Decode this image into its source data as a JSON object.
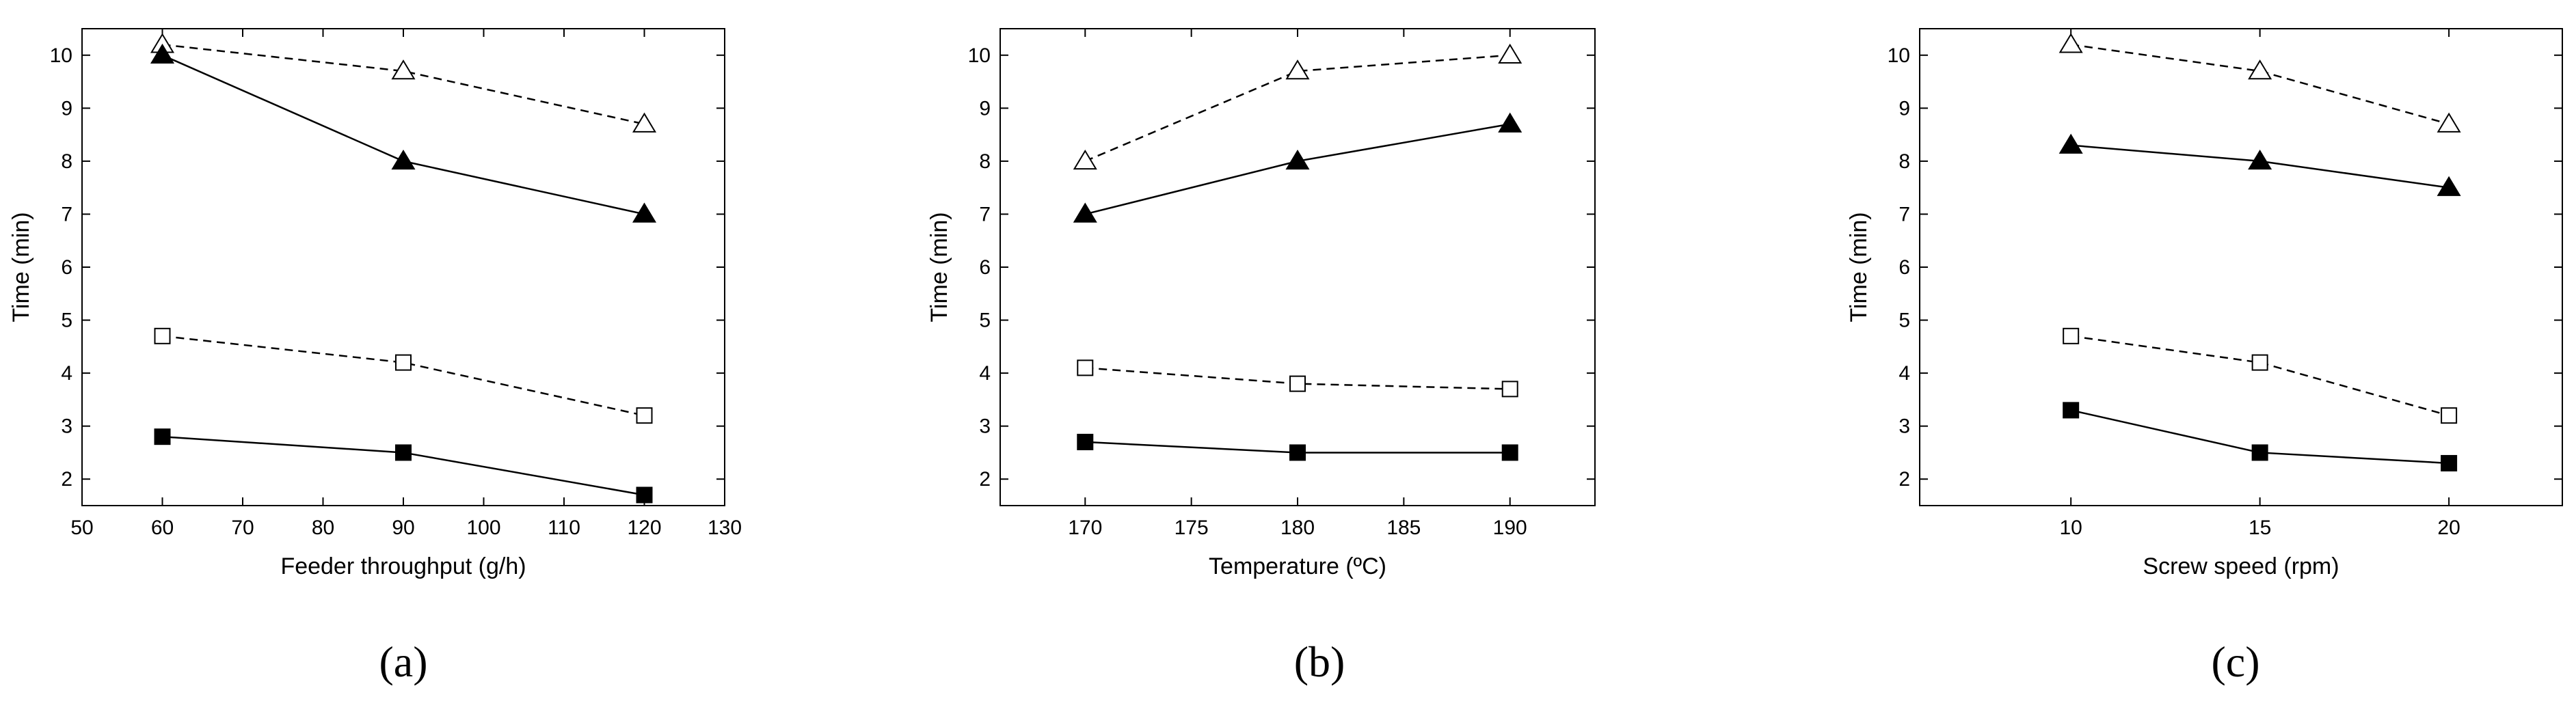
{
  "chart_data": [
    {
      "type": "line",
      "panel_label": "(a)",
      "xlabel": "Feeder throughput (g/h)",
      "ylabel": "Time (min)",
      "xlim": [
        50,
        130
      ],
      "ylim": [
        1.5,
        10.5
      ],
      "xticks": [
        50,
        60,
        70,
        80,
        90,
        100,
        110,
        120,
        130
      ],
      "yticks": [
        2,
        3,
        4,
        5,
        6,
        7,
        8,
        9,
        10
      ],
      "x": [
        60,
        90,
        120
      ],
      "series": [
        {
          "name": "open-triangle",
          "marker": "triangle-open",
          "line": "dashed",
          "values": [
            10.2,
            9.7,
            8.7
          ]
        },
        {
          "name": "filled-triangle",
          "marker": "triangle-filled",
          "line": "solid",
          "values": [
            10.0,
            8.0,
            7.0
          ]
        },
        {
          "name": "open-square",
          "marker": "square-open",
          "line": "dashed",
          "values": [
            4.7,
            4.2,
            3.2
          ]
        },
        {
          "name": "filled-square",
          "marker": "square-filled",
          "line": "solid",
          "values": [
            2.8,
            2.5,
            1.7
          ]
        }
      ]
    },
    {
      "type": "line",
      "panel_label": "(b)",
      "xlabel": "Temperature (ºC)",
      "ylabel": "Time (min)",
      "xlim": [
        166,
        194
      ],
      "ylim": [
        1.5,
        10.5
      ],
      "xticks": [
        170,
        175,
        180,
        185,
        190
      ],
      "yticks": [
        2,
        3,
        4,
        5,
        6,
        7,
        8,
        9,
        10
      ],
      "x": [
        170,
        180,
        190
      ],
      "series": [
        {
          "name": "open-triangle",
          "marker": "triangle-open",
          "line": "dashed",
          "values": [
            8.0,
            9.7,
            10.0
          ]
        },
        {
          "name": "filled-triangle",
          "marker": "triangle-filled",
          "line": "solid",
          "values": [
            7.0,
            8.0,
            8.7
          ]
        },
        {
          "name": "open-square",
          "marker": "square-open",
          "line": "dashed",
          "values": [
            4.1,
            3.8,
            3.7
          ]
        },
        {
          "name": "filled-square",
          "marker": "square-filled",
          "line": "solid",
          "values": [
            2.7,
            2.5,
            2.5
          ]
        }
      ]
    },
    {
      "type": "line",
      "panel_label": "(c)",
      "xlabel": "Screw speed (rpm)",
      "ylabel": "Time (min)",
      "xlim": [
        6,
        23
      ],
      "ylim": [
        1.5,
        10.5
      ],
      "xticks": [
        10,
        15,
        20
      ],
      "yticks": [
        2,
        3,
        4,
        5,
        6,
        7,
        8,
        9,
        10
      ],
      "x": [
        10,
        15,
        20
      ],
      "series": [
        {
          "name": "open-triangle",
          "marker": "triangle-open",
          "line": "dashed",
          "values": [
            10.2,
            9.7,
            8.7
          ]
        },
        {
          "name": "filled-triangle",
          "marker": "triangle-filled",
          "line": "solid",
          "values": [
            8.3,
            8.0,
            7.5
          ]
        },
        {
          "name": "open-square",
          "marker": "square-open",
          "line": "dashed",
          "values": [
            4.7,
            4.2,
            3.2
          ]
        },
        {
          "name": "filled-square",
          "marker": "square-filled",
          "line": "solid",
          "values": [
            3.3,
            2.5,
            2.3
          ]
        }
      ]
    }
  ]
}
